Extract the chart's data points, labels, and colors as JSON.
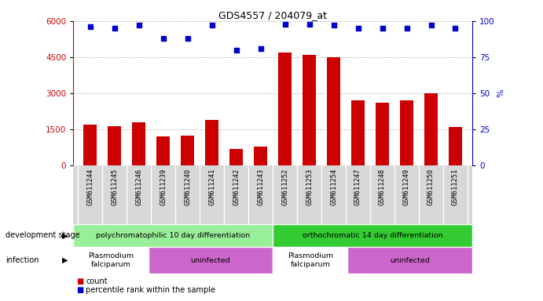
{
  "title": "GDS4557 / 204079_at",
  "samples": [
    "GSM611244",
    "GSM611245",
    "GSM611246",
    "GSM611239",
    "GSM611240",
    "GSM611241",
    "GSM611242",
    "GSM611243",
    "GSM611252",
    "GSM611253",
    "GSM611254",
    "GSM611247",
    "GSM611248",
    "GSM611249",
    "GSM611250",
    "GSM611251"
  ],
  "counts": [
    1700,
    1650,
    1800,
    1200,
    1250,
    1900,
    700,
    800,
    4700,
    4600,
    4500,
    2700,
    2600,
    2700,
    3000,
    1600
  ],
  "percentiles": [
    96,
    95,
    97,
    88,
    88,
    97,
    80,
    81,
    98,
    98,
    97,
    95,
    95,
    95,
    97,
    95
  ],
  "bar_color": "#cc0000",
  "dot_color": "#0000cc",
  "ylim_left": [
    0,
    6000
  ],
  "ylim_right": [
    0,
    100
  ],
  "yticks_left": [
    0,
    1500,
    3000,
    4500,
    6000
  ],
  "yticks_right": [
    0,
    25,
    50,
    75,
    100
  ],
  "dev_stage_groups": [
    {
      "label": "polychromatophilic 10 day differentiation",
      "start": 0,
      "end": 8,
      "color": "#99ee99"
    },
    {
      "label": "orthochromatic 14 day differentiation",
      "start": 8,
      "end": 16,
      "color": "#33cc33"
    }
  ],
  "infection_groups": [
    {
      "label": "Plasmodium\nfalciparum",
      "start": 0,
      "end": 3,
      "color": "#ffffff"
    },
    {
      "label": "uninfected",
      "start": 3,
      "end": 8,
      "color": "#cc66cc"
    },
    {
      "label": "Plasmodium\nfalciparum",
      "start": 8,
      "end": 11,
      "color": "#ffffff"
    },
    {
      "label": "uninfected",
      "start": 11,
      "end": 16,
      "color": "#cc66cc"
    }
  ],
  "dev_stage_label": "development stage",
  "infection_label": "infection",
  "legend_count": "count",
  "legend_percentile": "percentile rank within the sample",
  "background_color": "#ffffff",
  "grid_color": "#888888"
}
